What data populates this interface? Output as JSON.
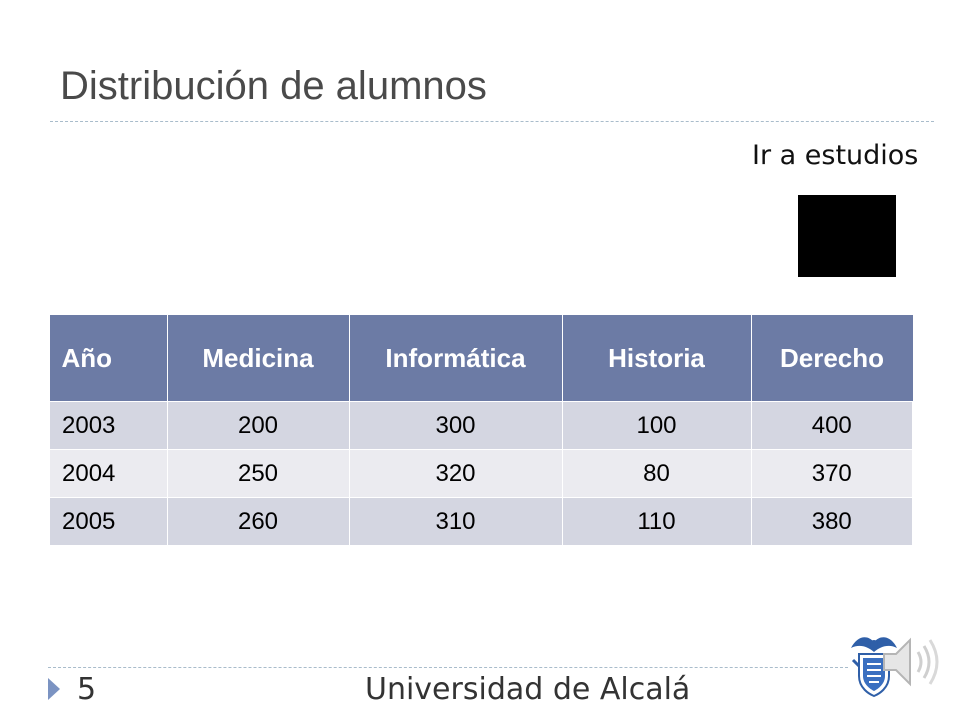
{
  "slide": {
    "title": "Distribución de alumnos",
    "goto_link": "Ir a estudios",
    "page_number": "5",
    "footer": "Universidad de Alcalá"
  },
  "table": {
    "headers": [
      "Año",
      "Medicina",
      "Informática",
      "Historia",
      "Derecho"
    ],
    "rows": [
      [
        "2003",
        "200",
        "300",
        "100",
        "400"
      ],
      [
        "2004",
        "250",
        "320",
        "80",
        "370"
      ],
      [
        "2005",
        "260",
        "310",
        "110",
        "380"
      ]
    ]
  },
  "colors": {
    "header_bg": "#6c7ba5",
    "row_odd_bg": "#d4d6e1",
    "row_even_bg": "#ebebf0",
    "accent": "#7b93c2"
  },
  "icons": {
    "logo": "university-crest-icon",
    "audio": "speaker-icon",
    "bullet": "triangle-bullet-icon"
  }
}
